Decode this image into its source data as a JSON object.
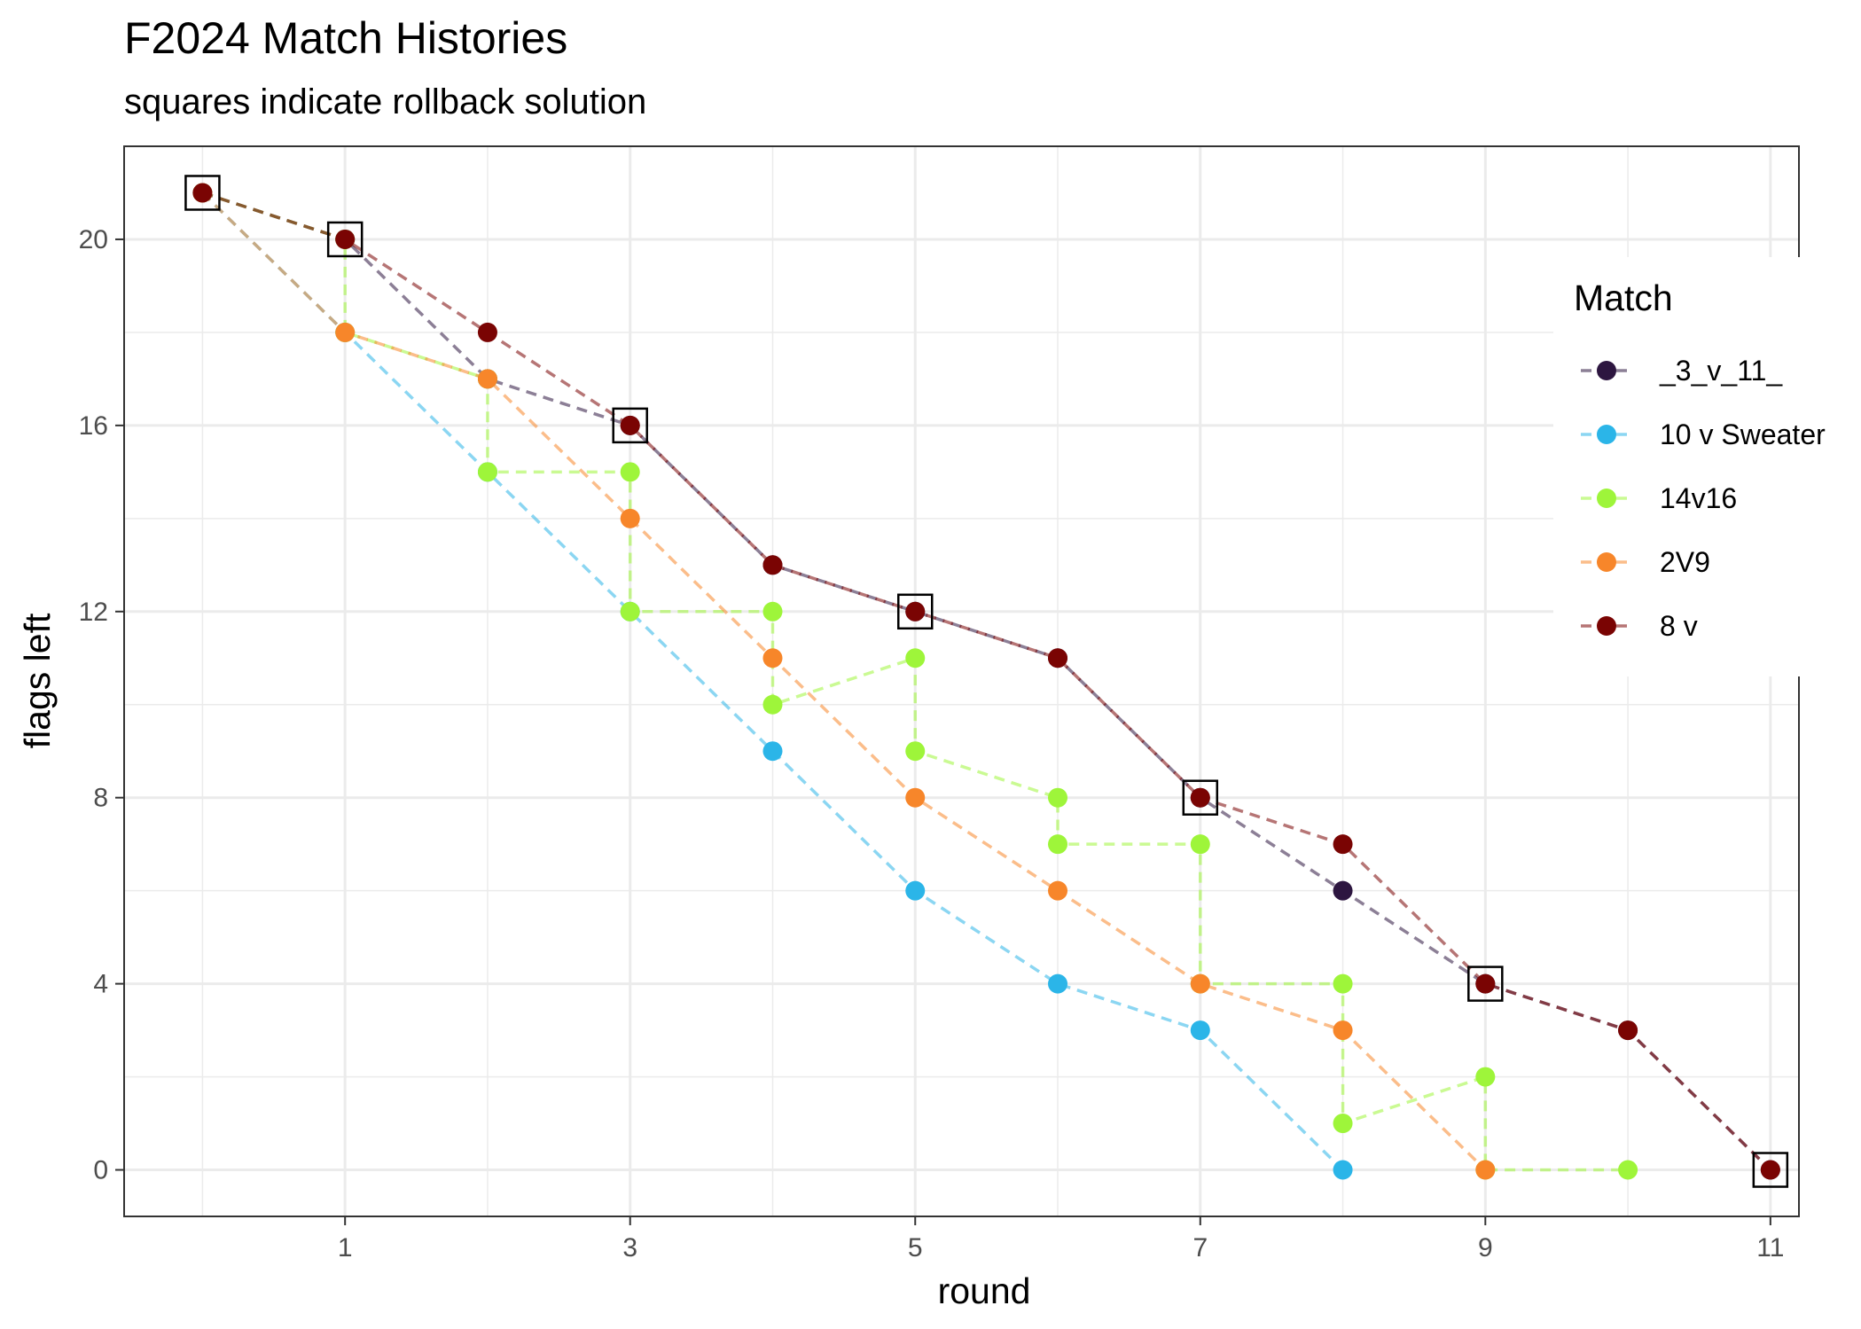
{
  "chart_data": {
    "type": "line",
    "title": "F2024 Match Histories",
    "subtitle": "squares indicate rollback solution",
    "xlabel": "round",
    "ylabel": "flags left",
    "xlim": [
      -0.55,
      11.2
    ],
    "ylim": [
      -1,
      22
    ],
    "x_ticks": [
      1,
      3,
      5,
      7,
      9,
      11
    ],
    "y_ticks": [
      0,
      4,
      8,
      12,
      16,
      20
    ],
    "grid": true,
    "legend": {
      "title": "Match",
      "placement": "right"
    },
    "series": [
      {
        "name": "_3_v_11_",
        "color": "#2d1640",
        "points": [
          [
            0,
            21
          ],
          [
            1,
            20
          ],
          [
            2,
            17
          ],
          [
            3,
            16
          ],
          [
            4,
            13
          ],
          [
            5,
            12
          ],
          [
            6,
            11
          ],
          [
            7,
            8
          ],
          [
            8,
            6
          ],
          [
            9,
            4
          ],
          [
            10,
            3
          ],
          [
            11,
            0
          ]
        ]
      },
      {
        "name": "10 v Sweater",
        "color": "#2bb5e8",
        "points": [
          [
            0,
            21
          ],
          [
            1,
            18
          ],
          [
            2,
            15
          ],
          [
            3,
            12
          ],
          [
            4,
            9
          ],
          [
            5,
            6
          ],
          [
            6,
            4
          ],
          [
            7,
            3
          ],
          [
            8,
            0
          ]
        ]
      },
      {
        "name": "14v16",
        "color": "#9ef53a",
        "points": [
          [
            0,
            21
          ],
          [
            1,
            20
          ],
          [
            1,
            18
          ],
          [
            2,
            17
          ],
          [
            2,
            15
          ],
          [
            3,
            15
          ],
          [
            3,
            12
          ],
          [
            4,
            12
          ],
          [
            4,
            10
          ],
          [
            5,
            11
          ],
          [
            5,
            9
          ],
          [
            6,
            8
          ],
          [
            6,
            7
          ],
          [
            7,
            7
          ],
          [
            7,
            4
          ],
          [
            8,
            4
          ],
          [
            8,
            1
          ],
          [
            9,
            2
          ],
          [
            9,
            0
          ],
          [
            10,
            0
          ]
        ]
      },
      {
        "name": "2V9",
        "color": "#f7862a",
        "points": [
          [
            0,
            21
          ],
          [
            1,
            18
          ],
          [
            2,
            17
          ],
          [
            3,
            14
          ],
          [
            4,
            11
          ],
          [
            5,
            8
          ],
          [
            6,
            6
          ],
          [
            7,
            4
          ],
          [
            8,
            3
          ],
          [
            9,
            0
          ]
        ]
      },
      {
        "name": "8 v",
        "color": "#7a0403",
        "points": [
          [
            0,
            21
          ],
          [
            1,
            20
          ],
          [
            2,
            18
          ],
          [
            3,
            16
          ],
          [
            4,
            13
          ],
          [
            5,
            12
          ],
          [
            6,
            11
          ],
          [
            7,
            8
          ],
          [
            8,
            7
          ],
          [
            9,
            4
          ],
          [
            10,
            3
          ],
          [
            11,
            0
          ]
        ]
      }
    ],
    "rollback_squares": [
      [
        0,
        21
      ],
      [
        1,
        20
      ],
      [
        3,
        16
      ],
      [
        5,
        12
      ],
      [
        7,
        8
      ],
      [
        9,
        4
      ],
      [
        11,
        0
      ]
    ]
  }
}
